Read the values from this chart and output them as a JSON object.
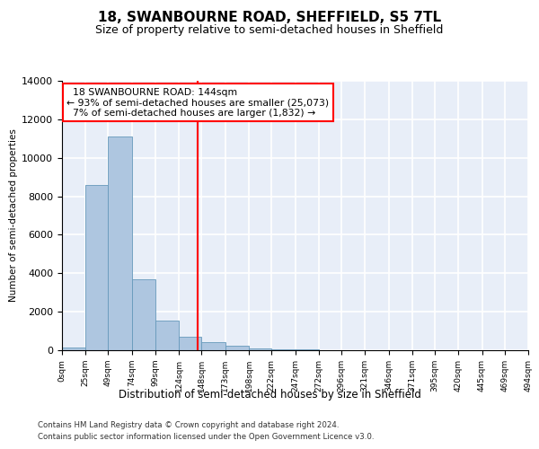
{
  "title": "18, SWANBOURNE ROAD, SHEFFIELD, S5 7TL",
  "subtitle": "Size of property relative to semi-detached houses in Sheffield",
  "xlabel": "Distribution of semi-detached houses by size in Sheffield",
  "ylabel": "Number of semi-detached properties",
  "property_size": 144,
  "annotation_line1": "  18 SWANBOURNE ROAD: 144sqm",
  "annotation_line2": "← 93% of semi-detached houses are smaller (25,073)",
  "annotation_line3": "  7% of semi-detached houses are larger (1,832) →",
  "bar_facecolor": "#aec6e0",
  "bar_edgecolor": "#6699bb",
  "vline_color": "red",
  "bg_color": "#e8eef8",
  "grid_color": "white",
  "footer_line1": "Contains HM Land Registry data © Crown copyright and database right 2024.",
  "footer_line2": "Contains public sector information licensed under the Open Government Licence v3.0.",
  "bin_edges": [
    0,
    25,
    49,
    74,
    99,
    124,
    148,
    173,
    198,
    222,
    247,
    272,
    296,
    321,
    346,
    371,
    395,
    420,
    445,
    469,
    494
  ],
  "bin_labels": [
    "0sqm",
    "25sqm",
    "49sqm",
    "74sqm",
    "99sqm",
    "124sqm",
    "148sqm",
    "173sqm",
    "198sqm",
    "222sqm",
    "247sqm",
    "272sqm",
    "296sqm",
    "321sqm",
    "346sqm",
    "371sqm",
    "395sqm",
    "420sqm",
    "445sqm",
    "469sqm",
    "494sqm"
  ],
  "counts": [
    150,
    8600,
    11100,
    3700,
    1550,
    700,
    400,
    220,
    95,
    50,
    25,
    12,
    8,
    5,
    3,
    3,
    2,
    1,
    1,
    1
  ],
  "ylim": [
    0,
    14000
  ],
  "yticks": [
    0,
    2000,
    4000,
    6000,
    8000,
    10000,
    12000,
    14000
  ]
}
